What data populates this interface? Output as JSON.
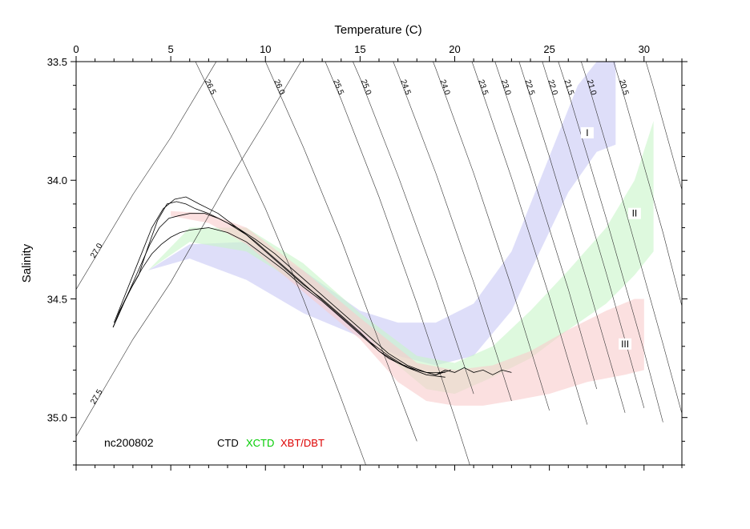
{
  "chart_data": {
    "type": "scatter",
    "title": "",
    "id_label": "nc200802",
    "xlabel": "Temperature (C)",
    "ylabel": "Salinity",
    "xlim": [
      0,
      32
    ],
    "ylim": [
      35.2,
      33.5
    ],
    "x_ticks": [
      0,
      5,
      10,
      15,
      20,
      25,
      30
    ],
    "x_tick_labels": [
      "0",
      "5",
      "10",
      "15",
      "20",
      "25",
      "30"
    ],
    "y_ticks": [
      33.5,
      34.0,
      34.5,
      35.0
    ],
    "y_tick_labels": [
      "33.5",
      "34.0",
      "34.5",
      "35.0"
    ],
    "grid": false,
    "legend": [
      {
        "name": "CTD",
        "color": "#000000"
      },
      {
        "name": "XCTD",
        "color": "#00cc00"
      },
      {
        "name": "XBT/DBT",
        "color": "#dd0000"
      }
    ],
    "legend_position": "bottom-left",
    "isopycnals": [
      {
        "label": "27.5",
        "t": [
          0,
          3,
          5,
          8,
          10,
          13
        ],
        "s": [
          35.08,
          34.67,
          34.43,
          34.01,
          33.75,
          33.35
        ]
      },
      {
        "label": "27.0",
        "t": [
          0,
          3,
          5,
          8,
          10,
          12,
          13
        ],
        "s": [
          34.46,
          34.06,
          33.82,
          33.42,
          33.15,
          32.88,
          32.73
        ]
      },
      {
        "label": "26.5",
        "t": [
          4,
          6,
          8,
          10,
          12,
          14,
          16
        ],
        "s": [
          33.22,
          33.45,
          33.78,
          34.12,
          34.5,
          34.92,
          35.35
        ]
      },
      {
        "label": "26.0",
        "t": [
          8,
          10,
          12,
          14,
          16,
          18
        ],
        "s": [
          33.15,
          33.5,
          33.86,
          34.25,
          34.68,
          35.1
        ]
      },
      {
        "label": "25.5",
        "t": [
          10,
          12,
          14,
          16,
          18,
          20,
          21
        ],
        "s": [
          32.93,
          33.28,
          33.66,
          34.07,
          34.52,
          35.0,
          35.25
        ]
      },
      {
        "label": "25.0",
        "t": [
          13,
          15,
          17,
          19,
          21
        ],
        "s": [
          33.2,
          33.57,
          33.98,
          34.42,
          34.9
        ]
      },
      {
        "label": "24.5",
        "t": [
          15,
          17,
          19,
          21,
          23
        ],
        "s": [
          33.15,
          33.55,
          33.97,
          34.43,
          34.93
        ]
      },
      {
        "label": "24.0",
        "t": [
          17,
          19,
          21,
          23,
          25
        ],
        "s": [
          33.12,
          33.53,
          33.97,
          34.45,
          34.97
        ]
      },
      {
        "label": "23.5",
        "t": [
          19,
          21,
          23,
          25,
          27
        ],
        "s": [
          33.09,
          33.52,
          33.99,
          34.49,
          35.03
        ]
      },
      {
        "label": "23.0",
        "t": [
          20,
          22,
          24,
          26,
          27.5
        ],
        "s": [
          33.02,
          33.47,
          33.95,
          34.46,
          34.88
        ]
      },
      {
        "label": "22.5",
        "t": [
          21,
          23,
          25,
          27,
          29
        ],
        "s": [
          32.94,
          33.4,
          33.9,
          34.43,
          34.98
        ]
      },
      {
        "label": "22.0",
        "t": [
          22,
          24,
          26,
          28,
          30
        ],
        "s": [
          32.87,
          33.34,
          33.85,
          34.39,
          34.96
        ]
      },
      {
        "label": "21.5",
        "t": [
          24,
          26,
          28,
          30,
          31
        ],
        "s": [
          33.14,
          33.63,
          34.16,
          34.72,
          35.02
        ]
      },
      {
        "label": "21.0",
        "t": [
          25,
          27,
          29,
          31,
          32.5
        ],
        "s": [
          33.08,
          33.58,
          34.12,
          34.69,
          35.13
        ]
      },
      {
        "label": "20.5",
        "t": [
          27,
          29,
          31,
          32,
          33
        ],
        "s": [
          33.13,
          33.66,
          34.22,
          34.53,
          34.84
        ]
      },
      {
        "label": "",
        "t": [
          29,
          30.5,
          32,
          33
        ],
        "s": [
          33.2,
          33.61,
          34.04,
          34.33
        ]
      }
    ],
    "regions": [
      {
        "name": "I",
        "color": "#c8c8f5",
        "upper": {
          "t": [
            3.8,
            6,
            9,
            12,
            15,
            17,
            19,
            21,
            23,
            25,
            26.5,
            27.5,
            28.5
          ],
          "s": [
            34.38,
            34.27,
            34.26,
            34.38,
            34.55,
            34.6,
            34.6,
            34.52,
            34.3,
            33.9,
            33.6,
            33.5,
            33.5
          ]
        },
        "lower": {
          "t": [
            3.8,
            6,
            9,
            12,
            15,
            17,
            19,
            21,
            23,
            24.5,
            26,
            27.5,
            28.5
          ],
          "s": [
            34.38,
            34.33,
            34.42,
            34.56,
            34.66,
            34.74,
            34.78,
            34.74,
            34.55,
            34.3,
            34.05,
            33.88,
            33.85
          ]
        }
      },
      {
        "name": "II",
        "color": "#c8f5c8",
        "upper": {
          "t": [
            3.8,
            6,
            9,
            12,
            15,
            18,
            20,
            22,
            24,
            26,
            28,
            29.5,
            30.5
          ],
          "s": [
            34.38,
            34.2,
            34.2,
            34.35,
            34.56,
            34.74,
            34.77,
            34.7,
            34.55,
            34.38,
            34.2,
            34.0,
            33.75
          ]
        },
        "lower": {
          "t": [
            3.8,
            6,
            9,
            12,
            15,
            17,
            18.5,
            20,
            22,
            24,
            26,
            28,
            29.5,
            30.5
          ],
          "s": [
            34.38,
            34.26,
            34.3,
            34.45,
            34.63,
            34.78,
            34.88,
            34.9,
            34.83,
            34.75,
            34.63,
            34.52,
            34.4,
            34.3
          ]
        }
      },
      {
        "name": "III",
        "color": "#f8cccc",
        "upper": {
          "t": [
            5,
            7,
            9,
            12,
            15,
            18,
            20,
            22,
            24,
            26,
            28,
            29.5,
            30
          ],
          "s": [
            34.13,
            34.14,
            34.2,
            34.38,
            34.58,
            34.77,
            34.8,
            34.78,
            34.72,
            34.63,
            34.55,
            34.5,
            34.5
          ]
        },
        "lower": {
          "t": [
            5,
            7,
            9,
            12,
            15,
            17,
            18.5,
            20,
            21.5,
            23,
            25,
            27,
            29,
            30
          ],
          "s": [
            34.15,
            34.18,
            34.27,
            34.47,
            34.67,
            34.85,
            34.93,
            34.95,
            34.95,
            34.93,
            34.9,
            34.85,
            34.82,
            34.8
          ]
        }
      }
    ],
    "region_labels": [
      {
        "text": "I",
        "t": 27.0,
        "s": 33.81
      },
      {
        "text": "II",
        "t": 29.5,
        "s": 34.15
      },
      {
        "text": "III",
        "t": 29.0,
        "s": 34.7
      }
    ],
    "series": [
      {
        "name": "CTD",
        "t": [
          1.95,
          2.3,
          2.8,
          3.3,
          3.8,
          4.3,
          4.8,
          5.3,
          5.8,
          6.3,
          7,
          8,
          9,
          10,
          11,
          12,
          13,
          14,
          15,
          15.5,
          16,
          16.5,
          17,
          17.5,
          18,
          18.5,
          19,
          19.5
        ],
        "s": [
          34.62,
          34.55,
          34.47,
          34.4,
          34.28,
          34.17,
          34.1,
          34.09,
          34.1,
          34.12,
          34.14,
          34.18,
          34.23,
          34.3,
          34.37,
          34.44,
          34.5,
          34.57,
          34.64,
          34.68,
          34.72,
          34.75,
          34.77,
          34.79,
          34.8,
          34.81,
          34.82,
          34.8
        ]
      },
      {
        "name": "CTD",
        "t": [
          1.95,
          2.4,
          2.9,
          3.4,
          3.9,
          4.4,
          4.9,
          5.4,
          6,
          6.8,
          7.5,
          8.5,
          9.5,
          10.5,
          11.5,
          12.5,
          13.5,
          14.5,
          15.5,
          16.5,
          17.5,
          18.5,
          19.5
        ],
        "s": [
          34.62,
          34.54,
          34.45,
          34.36,
          34.27,
          34.2,
          34.16,
          34.15,
          34.14,
          34.14,
          34.16,
          34.2,
          34.25,
          34.31,
          34.38,
          34.45,
          34.52,
          34.59,
          34.66,
          34.73,
          34.78,
          34.81,
          34.81
        ]
      },
      {
        "name": "CTD",
        "t": [
          1.95,
          2.5,
          3.0,
          3.5,
          4.0,
          4.5,
          5.0,
          5.5,
          6.0,
          7,
          8,
          9,
          10,
          11,
          12,
          13,
          14,
          15,
          16,
          17,
          18,
          19,
          19.8
        ],
        "s": [
          34.62,
          34.52,
          34.44,
          34.37,
          34.31,
          34.27,
          34.24,
          34.22,
          34.21,
          34.2,
          34.22,
          34.26,
          34.32,
          34.38,
          34.45,
          34.51,
          34.58,
          34.65,
          34.72,
          34.77,
          34.8,
          34.82,
          34.8
        ]
      },
      {
        "name": "CTD",
        "t": [
          2.0,
          2.5,
          3.0,
          3.5,
          4.0,
          4.6,
          5.2,
          5.8,
          6.5,
          7.5,
          8.5,
          9.5,
          10.5,
          11.5,
          12.5,
          13.5,
          14.5,
          15.5,
          16.5,
          17.5,
          18.5,
          19.5
        ],
        "s": [
          34.6,
          34.5,
          34.4,
          34.3,
          34.2,
          34.12,
          34.08,
          34.07,
          34.1,
          34.14,
          34.2,
          34.26,
          34.33,
          34.4,
          34.47,
          34.54,
          34.61,
          34.68,
          34.74,
          34.79,
          34.82,
          34.83
        ]
      },
      {
        "name": "CTD",
        "t": [
          18.5,
          19.0,
          19.5,
          20.0,
          20.5,
          21.0,
          21.5,
          22.0,
          22.5,
          23.0
        ],
        "s": [
          34.81,
          34.82,
          34.8,
          34.81,
          34.79,
          34.81,
          34.8,
          34.82,
          34.8,
          34.81
        ]
      }
    ]
  }
}
